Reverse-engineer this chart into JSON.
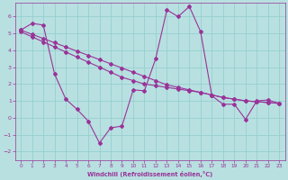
{
  "xlabel": "Windchill (Refroidissement éolien,°C)",
  "xlim": [
    -0.5,
    23.5
  ],
  "ylim": [
    -2.5,
    6.8
  ],
  "xticks": [
    0,
    1,
    2,
    3,
    4,
    5,
    6,
    7,
    8,
    9,
    10,
    11,
    12,
    13,
    14,
    15,
    16,
    17,
    18,
    19,
    20,
    21,
    22,
    23
  ],
  "yticks": [
    -2,
    -1,
    0,
    1,
    2,
    3,
    4,
    5,
    6
  ],
  "background_color": "#b8e0e0",
  "grid_color": "#90cccc",
  "line_color": "#993399",
  "line1_x": [
    0,
    1,
    2,
    3,
    4,
    5,
    6,
    7,
    8,
    9,
    10,
    11,
    12,
    13,
    14,
    15,
    16,
    17,
    18,
    19,
    20,
    21,
    22,
    23
  ],
  "line1_y": [
    5.2,
    5.6,
    5.5,
    2.6,
    1.1,
    0.5,
    -0.2,
    -1.5,
    -0.6,
    -0.5,
    1.65,
    1.6,
    3.5,
    6.4,
    6.0,
    6.6,
    5.1,
    1.3,
    0.8,
    0.8,
    -0.1,
    1.0,
    1.05,
    0.85
  ],
  "line2_x": [
    0,
    1,
    2,
    3,
    4,
    5,
    6,
    7,
    8,
    9,
    10,
    11,
    12,
    13,
    14,
    15,
    16,
    17,
    18,
    19,
    20,
    21,
    22,
    23
  ],
  "line2_y": [
    5.2,
    4.95,
    4.7,
    4.45,
    4.2,
    3.95,
    3.7,
    3.45,
    3.2,
    2.95,
    2.7,
    2.45,
    2.2,
    1.95,
    1.8,
    1.65,
    1.5,
    1.35,
    1.2,
    1.1,
    1.0,
    0.95,
    0.9,
    0.85
  ],
  "line3_x": [
    0,
    1,
    2,
    3,
    4,
    5,
    6,
    7,
    8,
    9,
    10,
    11,
    12,
    13,
    14,
    15,
    16,
    17,
    18,
    19,
    20,
    21,
    22,
    23
  ],
  "line3_y": [
    5.1,
    4.8,
    4.5,
    4.2,
    3.9,
    3.6,
    3.3,
    3.0,
    2.7,
    2.4,
    2.2,
    2.0,
    1.9,
    1.8,
    1.7,
    1.6,
    1.5,
    1.35,
    1.2,
    1.1,
    1.0,
    0.95,
    0.9,
    0.85
  ]
}
